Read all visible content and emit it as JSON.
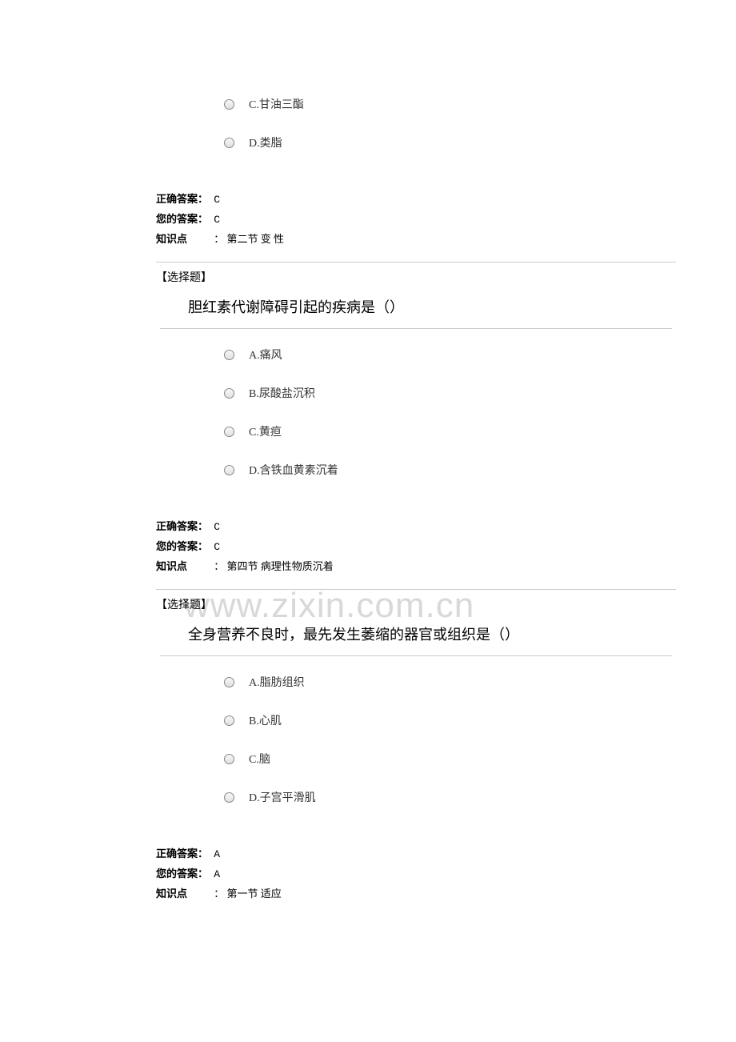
{
  "watermark": "www.zixin.com.cn",
  "labels": {
    "correct_answer": "正确答案：",
    "your_answer": "您的答案：",
    "knowledge_point": "知识点",
    "question_type": "【选择题】"
  },
  "partial_question_1": {
    "options": [
      {
        "text": "C.甘油三酯"
      },
      {
        "text": "D.类脂"
      }
    ],
    "correct_answer": "C",
    "your_answer": "C",
    "knowledge_point": "：  第二节  变  性"
  },
  "question_2": {
    "text": "胆红素代谢障碍引起的疾病是（）",
    "options": [
      {
        "text": "A.痛风"
      },
      {
        "text": "B.尿酸盐沉积"
      },
      {
        "text": "C.黄疸"
      },
      {
        "text": "D.含铁血黄素沉着"
      }
    ],
    "correct_answer": "C",
    "your_answer": "C",
    "knowledge_point": "：  第四节  病理性物质沉着"
  },
  "question_3": {
    "text": "全身营养不良时，最先发生萎缩的器官或组织是（）",
    "options": [
      {
        "text": "A.脂肪组织"
      },
      {
        "text": "B.心肌"
      },
      {
        "text": "C.脑"
      },
      {
        "text": "D.子宫平滑肌"
      }
    ],
    "correct_answer": "A",
    "your_answer": "A",
    "knowledge_point": "：  第一节  适应"
  }
}
